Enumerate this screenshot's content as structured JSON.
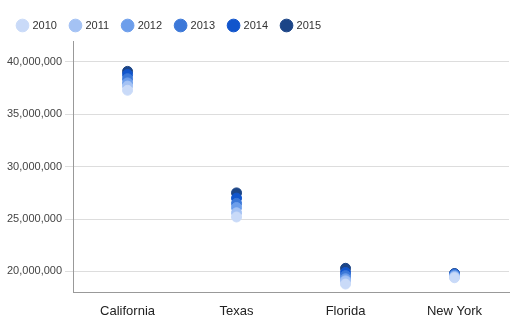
{
  "chart_data": {
    "type": "scatter",
    "categories": [
      "California",
      "Texas",
      "Florida",
      "New York"
    ],
    "series": [
      {
        "name": "2010",
        "color": "#c9daf8",
        "values": [
          37300000,
          25200000,
          18800000,
          19400000
        ]
      },
      {
        "name": "2011",
        "color": "#a4c2f4",
        "values": [
          37700000,
          25600000,
          19100000,
          19500000
        ]
      },
      {
        "name": "2012",
        "color": "#6d9eeb",
        "values": [
          38000000,
          26100000,
          19300000,
          19600000
        ]
      },
      {
        "name": "2013",
        "color": "#3c78d8",
        "values": [
          38400000,
          26500000,
          19600000,
          19700000
        ]
      },
      {
        "name": "2014",
        "color": "#1155cc",
        "values": [
          38800000,
          27000000,
          19900000,
          19750000
        ]
      },
      {
        "name": "2015",
        "color": "#1c4587",
        "values": [
          39100000,
          27500000,
          20300000,
          19800000
        ]
      }
    ],
    "ylim": [
      18000000,
      42000000
    ],
    "yticks": [
      {
        "value": 20000000,
        "label": "20,000,000"
      },
      {
        "value": 25000000,
        "label": "25,000,000"
      },
      {
        "value": 30000000,
        "label": "30,000,000"
      },
      {
        "value": 35000000,
        "label": "35,000,000"
      },
      {
        "value": 40000000,
        "label": "40,000,000"
      }
    ],
    "grid": true,
    "legend": "top-left",
    "marker": "circle"
  }
}
